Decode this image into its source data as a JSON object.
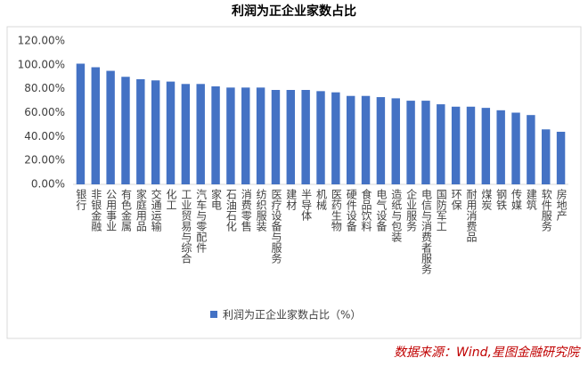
{
  "chart_data": {
    "type": "bar",
    "title": "利润为正企业家数占比",
    "categories": [
      "银行",
      "非银金融",
      "公用事业",
      "有色金属",
      "家庭用品",
      "交通运输",
      "化工",
      "工业贸易与综合",
      "汽车与零配件",
      "家电",
      "石油石化",
      "消费零售",
      "纺织服装",
      "医疗设备与服务",
      "建材",
      "半导体",
      "机械",
      "医药生物",
      "硬件设备",
      "食品饮料",
      "电气设备",
      "造纸与包装",
      "企业服务",
      "电信与消费者服务",
      "国防军工",
      "环保",
      "耐用消费品",
      "煤炭",
      "钢铁",
      "传媒",
      "建筑",
      "软件服务",
      "房地产"
    ],
    "series": [
      {
        "name": "利润为正企业家数占比（%）",
        "color": "#4472c4",
        "values": [
          101,
          98,
          95,
          90,
          88,
          87,
          86,
          84,
          84,
          82,
          81,
          81,
          81,
          79,
          79,
          79,
          78,
          77,
          74,
          74,
          73,
          72,
          70,
          70,
          67,
          65,
          65,
          64,
          62,
          60,
          58,
          46,
          44
        ]
      }
    ],
    "ylim": [
      0,
      120
    ],
    "yticks": [
      {
        "value": 0,
        "label": "0.00%"
      },
      {
        "value": 20,
        "label": "20.00%"
      },
      {
        "value": 40,
        "label": "40.00%"
      },
      {
        "value": 60,
        "label": "60.00%"
      },
      {
        "value": 80,
        "label": "80.00%"
      },
      {
        "value": 100,
        "label": "100.00%"
      },
      {
        "value": 120,
        "label": "120.00%"
      }
    ],
    "grid": false,
    "source": "数据来源：Wind,星图金融研究院"
  }
}
